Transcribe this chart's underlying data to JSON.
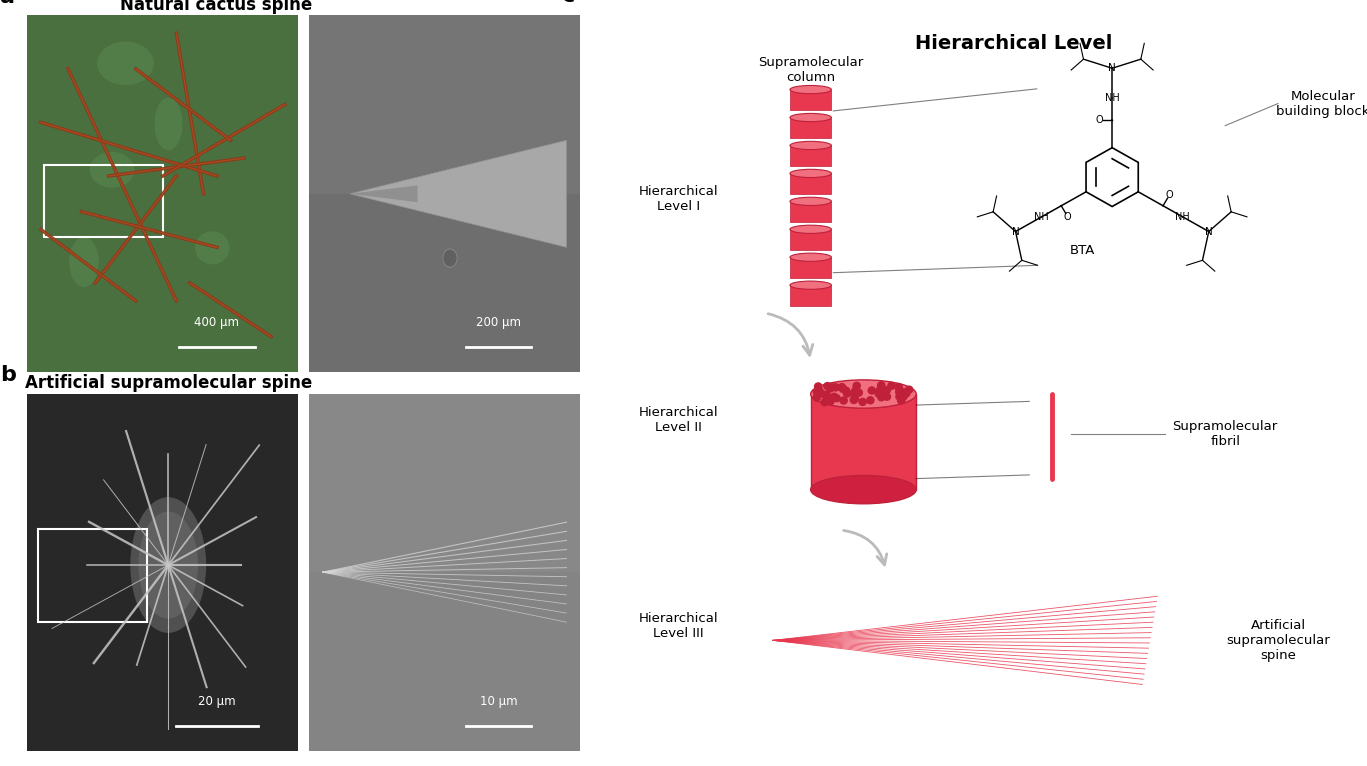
{
  "panel_a_title": "Natural cactus spine",
  "panel_b_title": "Artificial supramolecular spine",
  "panel_c_title": "Hierarchical Level",
  "scale_bars": [
    "400 μm",
    "200 μm",
    "20 μm",
    "10 μm"
  ],
  "hier_levels": [
    "Hierarchical\nLevel I",
    "Hierarchical\nLevel II",
    "Hierarchical\nLevel III"
  ],
  "right_labels": [
    "Molecular\nbuilding block",
    "Supramolecular\nfibril",
    "Artificial\nsupramolecular\nspine"
  ],
  "col_label": "Supramolecular\ncolumn",
  "bta_label": "BTA",
  "spine_color": "#e8384f",
  "arrow_color": "#bbbbbb",
  "bg_color": "#ffffff",
  "gray_dark": "#686868",
  "gray_mid": "#808080",
  "gray_light": "#909090"
}
